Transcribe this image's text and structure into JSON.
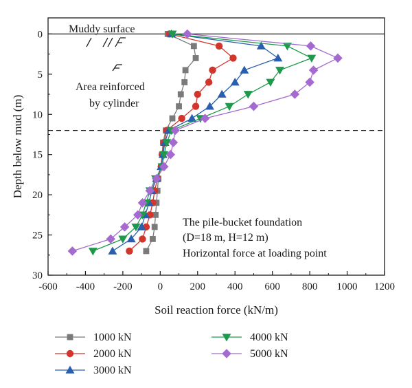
{
  "chart_data": {
    "type": "line",
    "xlabel": "Soil reaction force (kN/m)",
    "ylabel": "Depth below mud (m)",
    "xlim": [
      -600,
      1200
    ],
    "ylim": [
      30,
      -2
    ],
    "y_inverted": true,
    "x_ticks": [
      -600,
      -400,
      -200,
      0,
      200,
      400,
      600,
      800,
      1000,
      1200
    ],
    "y_ticks": [
      0,
      5,
      10,
      15,
      20,
      25,
      30
    ],
    "grid": false,
    "legend_position": "bottom",
    "annotations": {
      "muddy_surface": "Muddy surface",
      "reinforced_line1": "Area reinforced",
      "reinforced_line2": "by cylinder",
      "foundation_line1": "The pile-bucket foundation",
      "foundation_line2": "(D=18 m, H=12 m)",
      "foundation_line3": "Horizontal force at loading point"
    },
    "reference_lines": {
      "mud_surface_depth": 0,
      "bucket_bottom_depth": 12
    },
    "series": [
      {
        "name": "1000 kN",
        "color": "#7a7a7a",
        "marker": "square",
        "points": [
          [
            40,
            0
          ],
          [
            180,
            1.5
          ],
          [
            190,
            3
          ],
          [
            135,
            4.5
          ],
          [
            130,
            6
          ],
          [
            110,
            7.5
          ],
          [
            100,
            9
          ],
          [
            65,
            10.5
          ],
          [
            30,
            12
          ],
          [
            15,
            13.5
          ],
          [
            10,
            15
          ],
          [
            5,
            16.5
          ],
          [
            -10,
            18
          ],
          [
            -15,
            19.5
          ],
          [
            -20,
            21
          ],
          [
            -25,
            22.5
          ],
          [
            -30,
            24
          ],
          [
            -40,
            25.5
          ],
          [
            -75,
            27
          ]
        ]
      },
      {
        "name": "2000 kN",
        "color": "#d1352b",
        "marker": "circle",
        "points": [
          [
            50,
            0
          ],
          [
            315,
            1.5
          ],
          [
            390,
            3
          ],
          [
            280,
            4.5
          ],
          [
            260,
            6
          ],
          [
            200,
            7.5
          ],
          [
            190,
            9
          ],
          [
            115,
            10.5
          ],
          [
            35,
            12
          ],
          [
            20,
            13.5
          ],
          [
            10,
            15
          ],
          [
            5,
            16.5
          ],
          [
            -15,
            18
          ],
          [
            -30,
            19.5
          ],
          [
            -40,
            21
          ],
          [
            -55,
            22.5
          ],
          [
            -75,
            24
          ],
          [
            -95,
            25.5
          ],
          [
            -165,
            27
          ]
        ]
      },
      {
        "name": "3000 kN",
        "color": "#2a5fb0",
        "marker": "triangle-up",
        "points": [
          [
            60,
            0
          ],
          [
            540,
            1.5
          ],
          [
            630,
            3
          ],
          [
            450,
            4.5
          ],
          [
            400,
            6
          ],
          [
            330,
            7.5
          ],
          [
            265,
            9
          ],
          [
            170,
            10.5
          ],
          [
            45,
            12
          ],
          [
            25,
            13.5
          ],
          [
            15,
            15
          ],
          [
            5,
            16.5
          ],
          [
            -20,
            18
          ],
          [
            -45,
            19.5
          ],
          [
            -60,
            21
          ],
          [
            -80,
            22.5
          ],
          [
            -100,
            24
          ],
          [
            -155,
            25.5
          ],
          [
            -255,
            27
          ]
        ]
      },
      {
        "name": "4000 kN",
        "color": "#1f9a4c",
        "marker": "triangle-down",
        "points": [
          [
            65,
            0
          ],
          [
            680,
            1.5
          ],
          [
            810,
            3
          ],
          [
            640,
            4.5
          ],
          [
            590,
            6
          ],
          [
            470,
            7.5
          ],
          [
            370,
            9
          ],
          [
            215,
            10.5
          ],
          [
            60,
            12
          ],
          [
            35,
            13.5
          ],
          [
            20,
            15
          ],
          [
            10,
            16.5
          ],
          [
            -25,
            18
          ],
          [
            -55,
            19.5
          ],
          [
            -75,
            21
          ],
          [
            -95,
            22.5
          ],
          [
            -130,
            24
          ],
          [
            -200,
            25.5
          ],
          [
            -360,
            27
          ]
        ]
      },
      {
        "name": "5000 kN",
        "color": "#a46ad0",
        "marker": "diamond",
        "points": [
          [
            145,
            0
          ],
          [
            805,
            1.5
          ],
          [
            950,
            3
          ],
          [
            820,
            4.5
          ],
          [
            800,
            6
          ],
          [
            720,
            7.5
          ],
          [
            500,
            9
          ],
          [
            240,
            10.5
          ],
          [
            80,
            12
          ],
          [
            70,
            13.5
          ],
          [
            55,
            15
          ],
          [
            20,
            16.5
          ],
          [
            -20,
            18
          ],
          [
            -55,
            19.5
          ],
          [
            -95,
            21
          ],
          [
            -120,
            22.5
          ],
          [
            -190,
            24
          ],
          [
            -265,
            25.5
          ],
          [
            -470,
            27
          ]
        ]
      }
    ]
  }
}
